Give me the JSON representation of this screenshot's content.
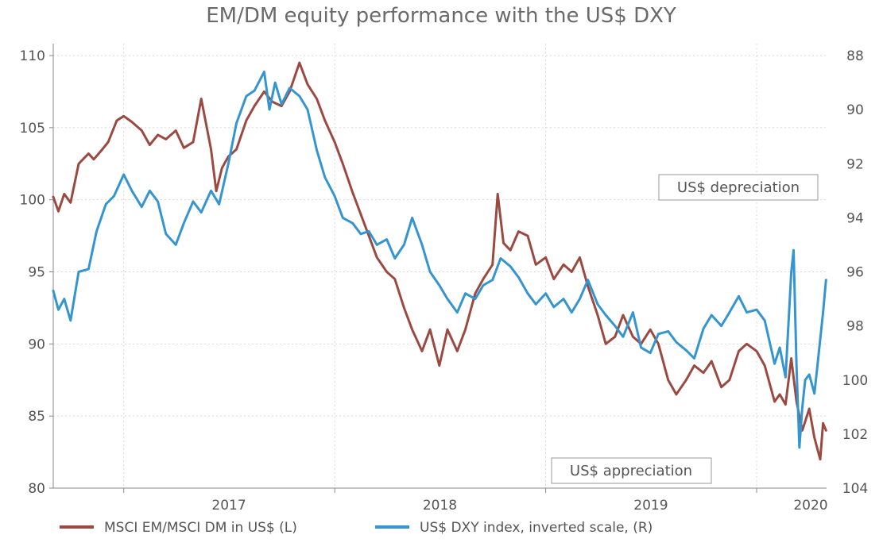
{
  "chart_data": {
    "type": "line",
    "title": "EM/DM equity performance with the US$ DXY",
    "x_range": [
      "2016-09-01",
      "2020-05-01"
    ],
    "x_ticks": [
      {
        "date": "2017-01-01",
        "label": "2017"
      },
      {
        "date": "2018-01-01",
        "label": "2018"
      },
      {
        "date": "2019-01-01",
        "label": "2019"
      },
      {
        "date": "2020-01-01",
        "label": "2020"
      }
    ],
    "y_left": {
      "min": 80,
      "max": 110,
      "ticks": [
        80,
        85,
        90,
        95,
        100,
        105,
        110
      ]
    },
    "y_right": {
      "min": 88,
      "max": 104,
      "inverted": true,
      "ticks": [
        88,
        90,
        92,
        94,
        96,
        98,
        100,
        102,
        104
      ]
    },
    "grid": true,
    "legend_position": "bottom",
    "series": [
      {
        "name": "MSCI EM/MSCI DM in US$ (L)",
        "axis": "left",
        "color": "#9b4a42",
        "points": [
          [
            "2016-09-01",
            100.2
          ],
          [
            "2016-09-10",
            99.2
          ],
          [
            "2016-09-20",
            100.4
          ],
          [
            "2016-10-01",
            99.8
          ],
          [
            "2016-10-15",
            102.5
          ],
          [
            "2016-11-01",
            103.2
          ],
          [
            "2016-11-10",
            102.8
          ],
          [
            "2016-11-25",
            103.5
          ],
          [
            "2016-12-05",
            104.0
          ],
          [
            "2016-12-20",
            105.5
          ],
          [
            "2017-01-01",
            105.8
          ],
          [
            "2017-01-15",
            105.4
          ],
          [
            "2017-02-01",
            104.8
          ],
          [
            "2017-02-15",
            103.8
          ],
          [
            "2017-03-01",
            104.5
          ],
          [
            "2017-03-15",
            104.2
          ],
          [
            "2017-04-01",
            104.8
          ],
          [
            "2017-04-15",
            103.6
          ],
          [
            "2017-05-01",
            104.0
          ],
          [
            "2017-05-15",
            107.0
          ],
          [
            "2017-06-01",
            103.5
          ],
          [
            "2017-06-10",
            100.6
          ],
          [
            "2017-06-20",
            102.2
          ],
          [
            "2017-07-01",
            103.0
          ],
          [
            "2017-07-15",
            103.5
          ],
          [
            "2017-08-01",
            105.5
          ],
          [
            "2017-08-15",
            106.5
          ],
          [
            "2017-09-01",
            107.5
          ],
          [
            "2017-09-15",
            106.8
          ],
          [
            "2017-10-01",
            106.5
          ],
          [
            "2017-10-15",
            107.5
          ],
          [
            "2017-11-01",
            109.5
          ],
          [
            "2017-11-15",
            108.0
          ],
          [
            "2017-12-01",
            107.0
          ],
          [
            "2017-12-15",
            105.5
          ],
          [
            "2018-01-01",
            104.0
          ],
          [
            "2018-01-15",
            102.5
          ],
          [
            "2018-02-01",
            100.5
          ],
          [
            "2018-02-15",
            99.0
          ],
          [
            "2018-03-01",
            97.5
          ],
          [
            "2018-03-15",
            96.0
          ],
          [
            "2018-04-01",
            95.0
          ],
          [
            "2018-04-15",
            94.5
          ],
          [
            "2018-05-01",
            92.5
          ],
          [
            "2018-05-15",
            91.0
          ],
          [
            "2018-06-01",
            89.5
          ],
          [
            "2018-06-15",
            91.0
          ],
          [
            "2018-07-01",
            88.5
          ],
          [
            "2018-07-15",
            91.0
          ],
          [
            "2018-08-01",
            89.5
          ],
          [
            "2018-08-15",
            91.0
          ],
          [
            "2018-09-01",
            93.5
          ],
          [
            "2018-09-15",
            94.5
          ],
          [
            "2018-10-01",
            95.5
          ],
          [
            "2018-10-10",
            100.4
          ],
          [
            "2018-10-20",
            97.0
          ],
          [
            "2018-11-01",
            96.5
          ],
          [
            "2018-11-15",
            97.8
          ],
          [
            "2018-12-01",
            97.5
          ],
          [
            "2018-12-15",
            95.5
          ],
          [
            "2019-01-01",
            96.0
          ],
          [
            "2019-01-15",
            94.5
          ],
          [
            "2019-02-01",
            95.5
          ],
          [
            "2019-02-15",
            95.0
          ],
          [
            "2019-03-01",
            96.0
          ],
          [
            "2019-03-15",
            94.0
          ],
          [
            "2019-04-01",
            92.0
          ],
          [
            "2019-04-15",
            90.0
          ],
          [
            "2019-05-01",
            90.5
          ],
          [
            "2019-05-15",
            92.0
          ],
          [
            "2019-06-01",
            90.5
          ],
          [
            "2019-06-15",
            90.0
          ],
          [
            "2019-07-01",
            91.0
          ],
          [
            "2019-07-15",
            90.0
          ],
          [
            "2019-08-01",
            87.5
          ],
          [
            "2019-08-15",
            86.5
          ],
          [
            "2019-09-01",
            87.5
          ],
          [
            "2019-09-15",
            88.5
          ],
          [
            "2019-10-01",
            88.0
          ],
          [
            "2019-10-15",
            88.8
          ],
          [
            "2019-11-01",
            87.0
          ],
          [
            "2019-11-15",
            87.5
          ],
          [
            "2019-12-01",
            89.5
          ],
          [
            "2019-12-15",
            90.0
          ],
          [
            "2020-01-01",
            89.5
          ],
          [
            "2020-01-15",
            88.5
          ],
          [
            "2020-02-01",
            86.0
          ],
          [
            "2020-02-10",
            86.5
          ],
          [
            "2020-02-20",
            85.8
          ],
          [
            "2020-03-01",
            89.0
          ],
          [
            "2020-03-10",
            86.0
          ],
          [
            "2020-03-20",
            84.0
          ],
          [
            "2020-04-01",
            85.5
          ],
          [
            "2020-04-10",
            83.5
          ],
          [
            "2020-04-20",
            82.0
          ],
          [
            "2020-04-25",
            84.5
          ],
          [
            "2020-04-30",
            84.0
          ]
        ]
      },
      {
        "name": "US$ DXY index, inverted scale, (R)",
        "axis": "right",
        "color": "#3595cf",
        "points": [
          [
            "2016-09-01",
            96.7
          ],
          [
            "2016-09-10",
            97.4
          ],
          [
            "2016-09-20",
            97.0
          ],
          [
            "2016-10-01",
            97.8
          ],
          [
            "2016-10-15",
            96.0
          ],
          [
            "2016-11-01",
            95.9
          ],
          [
            "2016-11-15",
            94.5
          ],
          [
            "2016-12-01",
            93.5
          ],
          [
            "2016-12-15",
            93.2
          ],
          [
            "2017-01-01",
            92.4
          ],
          [
            "2017-01-15",
            93.0
          ],
          [
            "2017-02-01",
            93.6
          ],
          [
            "2017-02-15",
            93.0
          ],
          [
            "2017-03-01",
            93.4
          ],
          [
            "2017-03-15",
            94.6
          ],
          [
            "2017-04-01",
            95.0
          ],
          [
            "2017-04-15",
            94.2
          ],
          [
            "2017-05-01",
            93.4
          ],
          [
            "2017-05-15",
            93.8
          ],
          [
            "2017-06-01",
            93.0
          ],
          [
            "2017-06-15",
            93.5
          ],
          [
            "2017-07-01",
            92.0
          ],
          [
            "2017-07-15",
            90.5
          ],
          [
            "2017-08-01",
            89.5
          ],
          [
            "2017-08-15",
            89.3
          ],
          [
            "2017-09-01",
            88.6
          ],
          [
            "2017-09-10",
            90.0
          ],
          [
            "2017-09-20",
            89.0
          ],
          [
            "2017-10-01",
            89.8
          ],
          [
            "2017-10-15",
            89.2
          ],
          [
            "2017-11-01",
            89.5
          ],
          [
            "2017-11-15",
            90.0
          ],
          [
            "2017-12-01",
            91.5
          ],
          [
            "2017-12-15",
            92.5
          ],
          [
            "2018-01-01",
            93.2
          ],
          [
            "2018-01-15",
            94.0
          ],
          [
            "2018-02-01",
            94.2
          ],
          [
            "2018-02-15",
            94.6
          ],
          [
            "2018-03-01",
            94.5
          ],
          [
            "2018-03-15",
            95.0
          ],
          [
            "2018-04-01",
            94.8
          ],
          [
            "2018-04-15",
            95.5
          ],
          [
            "2018-05-01",
            95.0
          ],
          [
            "2018-05-15",
            94.0
          ],
          [
            "2018-06-01",
            95.0
          ],
          [
            "2018-06-15",
            96.0
          ],
          [
            "2018-07-01",
            96.5
          ],
          [
            "2018-07-15",
            97.0
          ],
          [
            "2018-08-01",
            97.5
          ],
          [
            "2018-08-15",
            96.8
          ],
          [
            "2018-09-01",
            97.0
          ],
          [
            "2018-09-15",
            96.5
          ],
          [
            "2018-10-01",
            96.3
          ],
          [
            "2018-10-15",
            95.5
          ],
          [
            "2018-11-01",
            95.8
          ],
          [
            "2018-11-15",
            96.2
          ],
          [
            "2018-12-01",
            96.8
          ],
          [
            "2018-12-15",
            97.2
          ],
          [
            "2019-01-01",
            96.8
          ],
          [
            "2019-01-15",
            97.3
          ],
          [
            "2019-02-01",
            97.0
          ],
          [
            "2019-02-15",
            97.5
          ],
          [
            "2019-03-01",
            97.0
          ],
          [
            "2019-03-15",
            96.3
          ],
          [
            "2019-04-01",
            97.2
          ],
          [
            "2019-04-15",
            97.6
          ],
          [
            "2019-05-01",
            98.0
          ],
          [
            "2019-05-15",
            98.4
          ],
          [
            "2019-06-01",
            97.5
          ],
          [
            "2019-06-15",
            98.8
          ],
          [
            "2019-07-01",
            99.0
          ],
          [
            "2019-07-15",
            98.3
          ],
          [
            "2019-08-01",
            98.2
          ],
          [
            "2019-08-15",
            98.6
          ],
          [
            "2019-09-01",
            98.9
          ],
          [
            "2019-09-15",
            99.2
          ],
          [
            "2019-10-01",
            98.1
          ],
          [
            "2019-10-15",
            97.6
          ],
          [
            "2019-11-01",
            98.0
          ],
          [
            "2019-11-15",
            97.5
          ],
          [
            "2019-12-01",
            96.9
          ],
          [
            "2019-12-15",
            97.5
          ],
          [
            "2020-01-01",
            97.4
          ],
          [
            "2020-01-15",
            97.8
          ],
          [
            "2020-02-01",
            99.4
          ],
          [
            "2020-02-10",
            98.8
          ],
          [
            "2020-02-20",
            99.9
          ],
          [
            "2020-03-01",
            96.0
          ],
          [
            "2020-03-05",
            95.2
          ],
          [
            "2020-03-10",
            99.5
          ],
          [
            "2020-03-15",
            102.5
          ],
          [
            "2020-03-20",
            101.0
          ],
          [
            "2020-03-25",
            100.0
          ],
          [
            "2020-04-01",
            99.8
          ],
          [
            "2020-04-10",
            100.5
          ],
          [
            "2020-04-15",
            99.5
          ],
          [
            "2020-04-20",
            98.5
          ],
          [
            "2020-04-25",
            97.5
          ],
          [
            "2020-04-30",
            96.3
          ]
        ]
      }
    ],
    "annotations": [
      {
        "id": "depreciation",
        "text": "US$ depreciation"
      },
      {
        "id": "appreciation",
        "text": "US$ appreciation"
      }
    ]
  }
}
